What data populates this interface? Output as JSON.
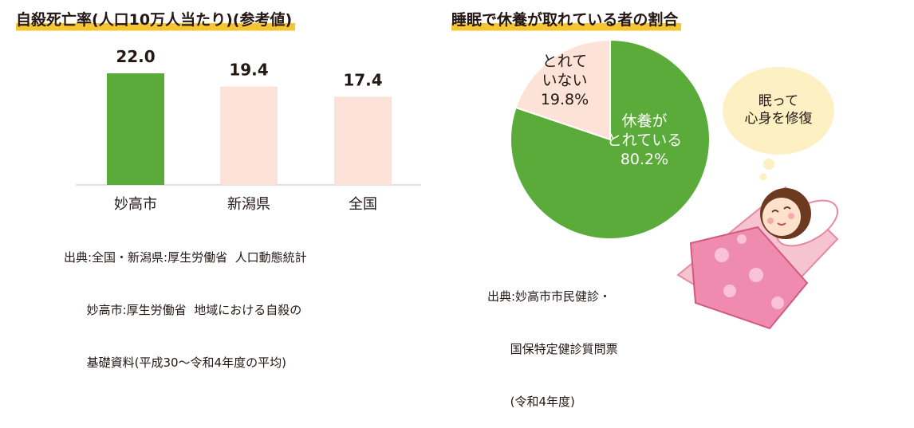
{
  "bar_panel": {
    "title": "自殺死亡率(人口10万人当たり)(参考値)",
    "source_lines": [
      "出典:全国・新潟県:厚生労働省  人口動態統計",
      "      妙高市:厚生労働省  地域における自殺の",
      "      基礎資料(平成30～令和4年度の平均)"
    ]
  },
  "pie_panel": {
    "title": "睡眠で休養が取れている者の割合",
    "source_lines": [
      "出典:妙高市市民健診・",
      "      国保特定健診質問票",
      "      (令和4年度)"
    ],
    "bubble_text": [
      "眠って",
      "心身を修復"
    ]
  },
  "chart_data": [
    {
      "type": "bar",
      "title": "自殺死亡率(人口10万人当たり)(参考値)",
      "categories": [
        "妙高市",
        "新潟県",
        "全国"
      ],
      "values": [
        22.0,
        19.4,
        17.4
      ],
      "value_labels": [
        "22.0",
        "19.4",
        "17.4"
      ],
      "colors": [
        "#5aab3a",
        "#fde3d7",
        "#fde3d7"
      ],
      "ylim": [
        0,
        22.0
      ],
      "grid": false
    },
    {
      "type": "pie",
      "title": "睡眠で休養が取れている者の割合",
      "slices": [
        {
          "label_lines": [
            "休養が",
            "とれている",
            "80.2%"
          ],
          "value": 80.2,
          "color": "#5aab3a",
          "text_color": "#ffffff"
        },
        {
          "label_lines": [
            "とれて",
            "いない",
            "19.8%"
          ],
          "value": 19.8,
          "color": "#fde3d7",
          "text_color": "#231815"
        }
      ]
    }
  ]
}
